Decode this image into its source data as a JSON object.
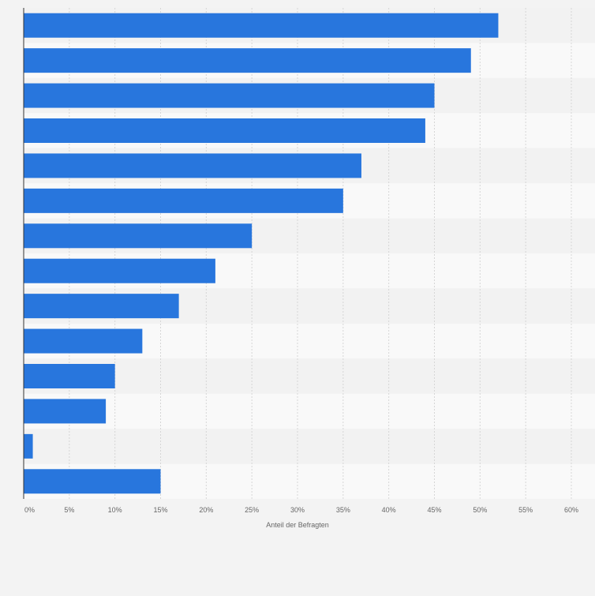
{
  "chart_data": {
    "type": "bar",
    "orientation": "horizontal",
    "categories": [
      "",
      "",
      "",
      "",
      "",
      "",
      "",
      "",
      "",
      "",
      "",
      "",
      "",
      ""
    ],
    "values": [
      52,
      49,
      45,
      44,
      37,
      35,
      25,
      21,
      17,
      13,
      10,
      9,
      1,
      15
    ],
    "unit": "%",
    "xlabel": "Anteil der Befragten",
    "ylabel": "",
    "xlim": [
      0,
      60
    ],
    "xticks": [
      "0%",
      "5%",
      "10%",
      "15%",
      "20%",
      "25%",
      "30%",
      "35%",
      "40%",
      "45%",
      "50%",
      "55%",
      "60%"
    ],
    "grid": true,
    "bar_color": "#2876dd"
  },
  "colors": {
    "band_light": "#f9f9f9",
    "band_dark": "#f2f2f2",
    "grid": "#d6d6d6",
    "axis": "#333333"
  }
}
